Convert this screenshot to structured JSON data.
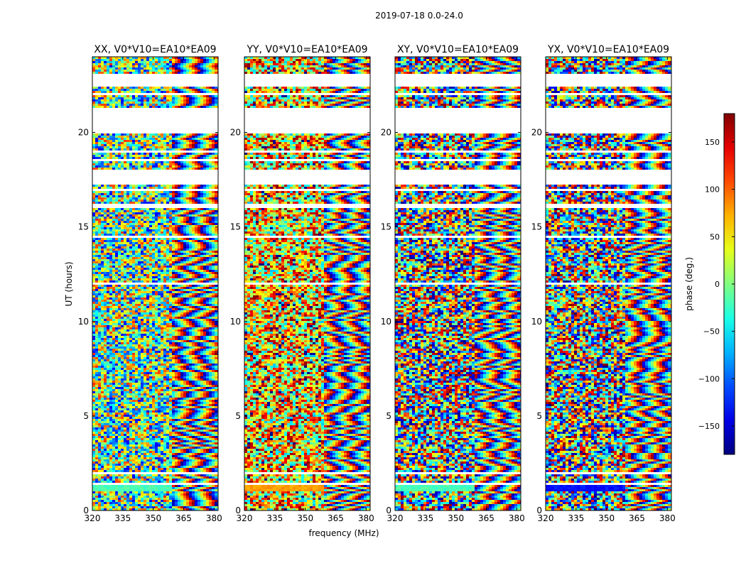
{
  "chart_data": {
    "type": "heatmap",
    "title": "2019-07-18 0.0-24.0",
    "xlabel": "frequency (MHz)",
    "ylabel": "UT (hours)",
    "xlim": [
      320,
      382
    ],
    "ylim": [
      0,
      24
    ],
    "x_ticks": [
      320,
      335,
      350,
      365,
      380
    ],
    "x_tick_labels": [
      "320",
      "335",
      "350",
      "365",
      "380"
    ],
    "y_ticks": [
      0,
      5,
      10,
      15,
      20
    ],
    "y_tick_labels": [
      "0",
      "5",
      "10",
      "15",
      "20"
    ],
    "panels": [
      {
        "name": "xx",
        "title": "XX, V0*V10=EA10*EA09"
      },
      {
        "name": "yy",
        "title": "YY, V0*V10=EA10*EA09"
      },
      {
        "name": "xy",
        "title": "XY, V0*V10=EA10*EA09"
      },
      {
        "name": "yx",
        "title": "YX, V0*V10=EA10*EA09"
      }
    ],
    "colorbar": {
      "label": "phase (deg.)",
      "range": [
        -180,
        180
      ],
      "ticks": [
        150,
        100,
        50,
        0,
        -50,
        -100,
        -150
      ],
      "tick_labels": [
        "150",
        "100",
        "50",
        "0",
        "−50",
        "−100",
        "−150"
      ],
      "colormap": "jet"
    },
    "flagged_ut_ranges": [
      [
        1.3,
        1.45
      ],
      [
        1.95,
        2.05
      ],
      [
        11.9,
        12.05
      ],
      [
        14.45,
        14.55
      ],
      [
        15.5,
        15.6
      ],
      [
        16.05,
        16.25
      ],
      [
        16.9,
        17.0
      ],
      [
        17.2,
        18.0
      ],
      [
        18.45,
        18.55
      ],
      [
        18.9,
        19.0
      ],
      [
        19.9,
        21.3
      ],
      [
        21.7,
        21.8
      ],
      [
        22.0,
        22.1
      ],
      [
        22.45,
        23.05
      ]
    ],
    "smooth_color_phase_ranges": [
      {
        "panel": "xx",
        "ut": [
          1.0,
          1.3
        ],
        "phase": -20
      },
      {
        "panel": "yy",
        "ut": [
          1.0,
          1.3
        ],
        "phase": 80
      },
      {
        "panel": "xy",
        "ut": [
          1.0,
          1.3
        ],
        "phase": -20
      },
      {
        "panel": "yx",
        "ut": [
          1.0,
          1.3
        ],
        "phase": -130
      }
    ]
  }
}
